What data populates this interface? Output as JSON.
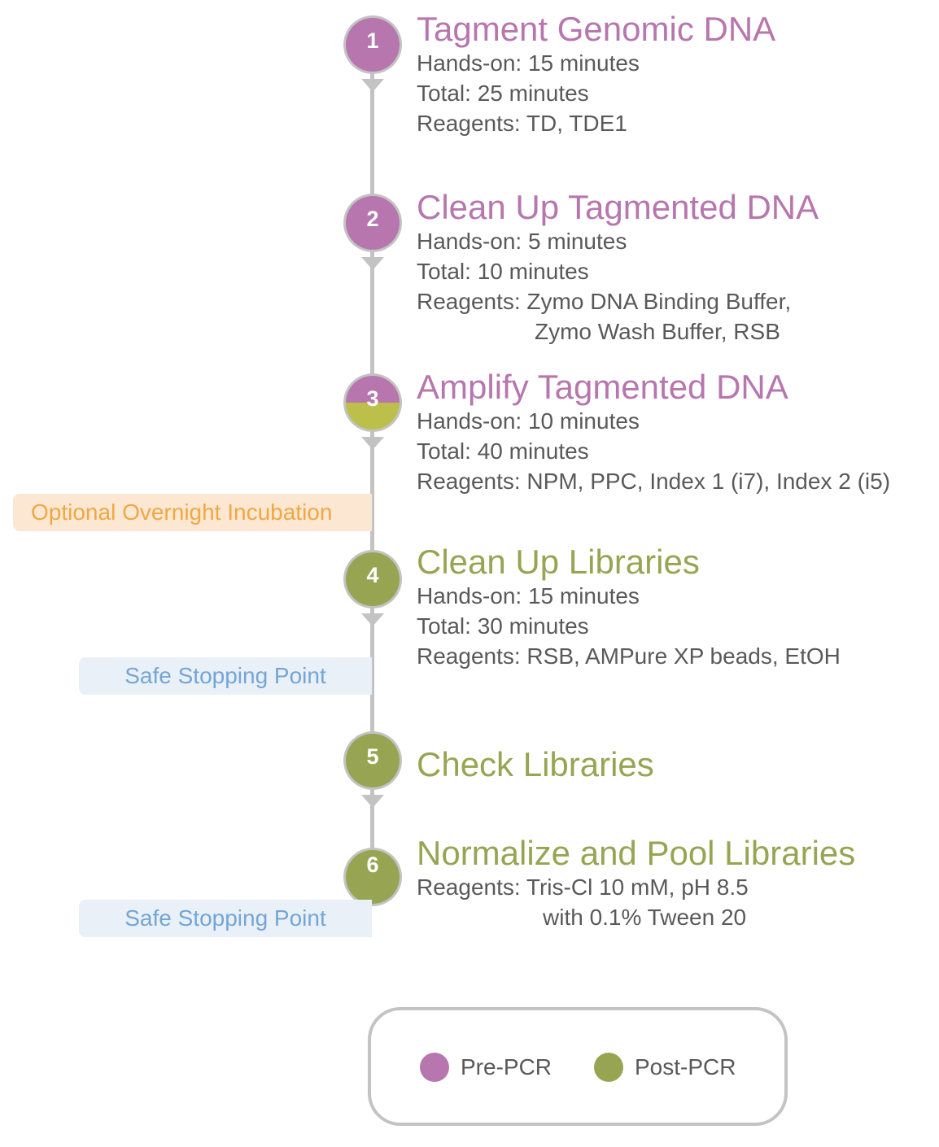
{
  "colors": {
    "pre_pcr": "#b776ae",
    "post_pcr": "#97a553",
    "line": "#c3c3c3",
    "text": "#595959",
    "optional": "#f0a744",
    "safe": "#74a6d5"
  },
  "steps": [
    {
      "number": "1",
      "phase": "pre",
      "title": "Tagment Genomic DNA",
      "details": [
        "Hands-on: 15 minutes",
        "Total: 25 minutes",
        "Reagents: TD, TDE1"
      ]
    },
    {
      "number": "2",
      "phase": "pre",
      "title": "Clean Up Tagmented DNA",
      "details": [
        "Hands-on: 5 minutes",
        "Total: 10 minutes",
        "Reagents: Zymo DNA Binding Buffer,",
        "Zymo Wash Buffer, RSB"
      ]
    },
    {
      "number": "3",
      "phase": "transition",
      "title": "Amplify Tagmented DNA",
      "details": [
        "Hands-on: 10 minutes",
        "Total: 40 minutes",
        "Reagents: NPM, PPC, Index 1 (i7), Index 2 (i5)"
      ]
    },
    {
      "number": "4",
      "phase": "post",
      "title": "Clean Up Libraries",
      "details": [
        "Hands-on: 15 minutes",
        "Total: 30 minutes",
        "Reagents: RSB, AMPure XP beads, EtOH"
      ]
    },
    {
      "number": "5",
      "phase": "post",
      "title": "Check Libraries",
      "details": []
    },
    {
      "number": "6",
      "phase": "post",
      "title": "Normalize and Pool Libraries",
      "details": [
        "Reagents: Tris-Cl 10 mM, pH 8.5",
        "with 0.1% Tween 20"
      ]
    }
  ],
  "callouts": {
    "optional": "Optional Overnight Incubation",
    "safe_1": "Safe Stopping Point",
    "safe_2": "Safe Stopping Point"
  },
  "legend": {
    "pre_pcr": "Pre-PCR",
    "post_pcr": "Post-PCR"
  }
}
